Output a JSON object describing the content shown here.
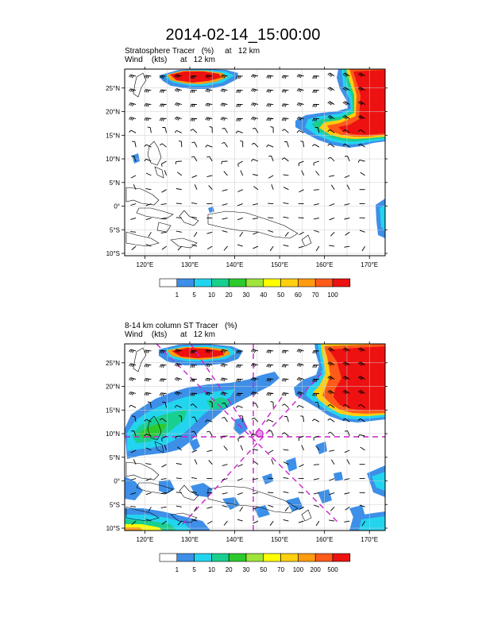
{
  "main_title": "2014-02-14_15:00:00",
  "panels": [
    {
      "id": "top",
      "title_line1": "Stratosphere Tracer   (%)     at   12 km",
      "title_line2": "Wind    (kts)      at   12 km",
      "colorbar": {
        "labels": [
          "1",
          "5",
          "10",
          "20",
          "30",
          "40",
          "50",
          "60",
          "70",
          "100"
        ],
        "colors": [
          "#ffffff",
          "#3d8fe8",
          "#23d4ef",
          "#19cf8f",
          "#2dca2d",
          "#9fe43a",
          "#ffff00",
          "#ffcf10",
          "#ff9b10",
          "#ff5a1a",
          "#ee1111"
        ]
      }
    },
    {
      "id": "bottom",
      "title_line1": "8-14 km column ST Tracer   (%)",
      "title_line2": "Wind    (kts)      at   12 km",
      "colorbar": {
        "labels": [
          "1",
          "5",
          "10",
          "20",
          "30",
          "50",
          "70",
          "100",
          "200",
          "500"
        ],
        "colors": [
          "#ffffff",
          "#3d8fe8",
          "#23d4ef",
          "#19cf8f",
          "#2dca2d",
          "#9fe43a",
          "#ffff00",
          "#ffcf10",
          "#ff9b10",
          "#ff5a1a",
          "#ee1111"
        ]
      }
    }
  ],
  "map": {
    "lon_ticks": [
      "120°E",
      "130°E",
      "140°E",
      "150°E",
      "160°E",
      "170°E"
    ],
    "lat_ticks": [
      "25°N",
      "20°N",
      "15°N",
      "10°N",
      "5°N",
      "0°",
      "5°S",
      "10°S"
    ],
    "lon_range": [
      115.5,
      173.5
    ],
    "lat_range": [
      -10.5,
      29.0
    ]
  },
  "storm_marker": {
    "lon": 145.5,
    "lat": 10.0,
    "color": "#cc22cc"
  }
}
